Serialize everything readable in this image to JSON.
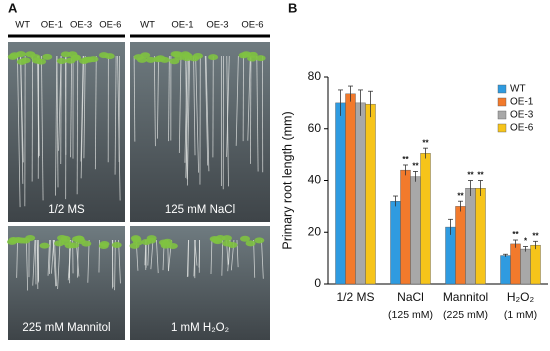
{
  "panel_a": {
    "label": "A",
    "lines": [
      "WT",
      "OE-1",
      "OE-3",
      "OE-6"
    ],
    "photos": [
      "1/2 MS",
      "125 mM NaCl",
      "225 mM Mannitol",
      "1 mM H₂O₂"
    ]
  },
  "chart_data": {
    "type": "bar",
    "label": "B",
    "y_label": "Primary root length (mm)",
    "categories": [
      "1/2 MS",
      "NaCl",
      "Mannitol",
      "H₂O₂"
    ],
    "category_notes": [
      null,
      "(125 mM)",
      "(225 mM)",
      "(1 mM)"
    ],
    "ylim": [
      0,
      80
    ],
    "yticks": [
      0,
      20,
      40,
      60,
      80
    ],
    "legend": "top-right",
    "series": [
      {
        "name": "WT",
        "color": "#2f9be0",
        "values": [
          70,
          32,
          22,
          11
        ],
        "errors": [
          5,
          2,
          3,
          0.5
        ],
        "annotations": [
          null,
          null,
          null,
          null
        ]
      },
      {
        "name": "OE-1",
        "color": "#f27a2c",
        "values": [
          73.5,
          44,
          30,
          15.5
        ],
        "errors": [
          3,
          2,
          2,
          1.5
        ],
        "annotations": [
          null,
          "**",
          "**",
          "**"
        ]
      },
      {
        "name": "OE-3",
        "color": "#a8a8a8",
        "values": [
          70,
          41.5,
          37,
          13.5
        ],
        "errors": [
          5,
          2,
          3,
          1
        ],
        "annotations": [
          null,
          "**",
          "**",
          "*"
        ]
      },
      {
        "name": "OE-6",
        "color": "#f6c41a",
        "values": [
          69.5,
          50.5,
          37,
          15
        ],
        "errors": [
          5,
          2,
          3,
          1.5
        ],
        "annotations": [
          null,
          "**",
          "**",
          "**"
        ]
      }
    ]
  }
}
